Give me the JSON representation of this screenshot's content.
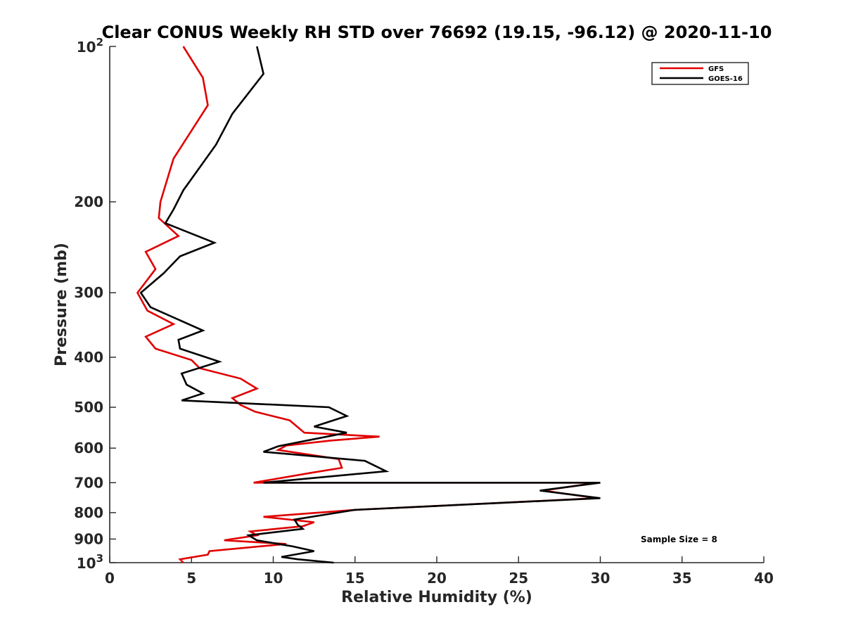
{
  "chart_data": {
    "type": "line",
    "title": "Clear CONUS Weekly RH STD over 76692 (19.15, -96.12) @ 2020-11-10",
    "xlabel": "Relative Humidity (%)",
    "ylabel": "Pressure (mb)",
    "xlim": [
      0,
      40
    ],
    "ylim": [
      100,
      1000
    ],
    "yscale": "log",
    "yreversed": true,
    "x_ticks": [
      0,
      5,
      10,
      15,
      20,
      25,
      30,
      35,
      40
    ],
    "x_tick_labels": [
      "0",
      "5",
      "10",
      "15",
      "20",
      "25",
      "30",
      "35",
      "40"
    ],
    "y_ticks": [
      200,
      300,
      400,
      500,
      600,
      700,
      800,
      900
    ],
    "y_tick_labels": [
      "200",
      "300",
      "400",
      "500",
      "600",
      "700",
      "800",
      "900"
    ],
    "y_power_ticks": [
      {
        "value": 100,
        "base": "10",
        "exp": "2"
      },
      {
        "value": 1000,
        "base": "10",
        "exp": "3"
      }
    ],
    "grid": false,
    "legend_position": "top-right",
    "annotation": "Sample Size = 8",
    "series": [
      {
        "name": "GFS",
        "color": "#e00000",
        "points": [
          [
            4.5,
            100
          ],
          [
            5.7,
            115
          ],
          [
            6.0,
            130
          ],
          [
            3.9,
            165
          ],
          [
            3.1,
            200
          ],
          [
            3.0,
            215
          ],
          [
            4.2,
            233
          ],
          [
            2.2,
            250
          ],
          [
            2.8,
            270
          ],
          [
            1.7,
            300
          ],
          [
            2.3,
            325
          ],
          [
            3.9,
            345
          ],
          [
            2.2,
            365
          ],
          [
            2.8,
            385
          ],
          [
            5.0,
            405
          ],
          [
            5.5,
            420
          ],
          [
            8.0,
            440
          ],
          [
            9.0,
            460
          ],
          [
            7.5,
            480
          ],
          [
            8.0,
            495
          ],
          [
            8.9,
            510
          ],
          [
            11.0,
            530
          ],
          [
            11.9,
            560
          ],
          [
            16.5,
            570
          ],
          [
            13.5,
            580
          ],
          [
            10.8,
            593
          ],
          [
            10.3,
            605
          ],
          [
            14.0,
            630
          ],
          [
            14.2,
            655
          ],
          [
            12.3,
            670
          ],
          [
            8.8,
            700
          ],
          [
            29.8,
            700
          ],
          [
            26.5,
            725
          ],
          [
            29.8,
            750
          ],
          [
            15.0,
            790
          ],
          [
            9.4,
            815
          ],
          [
            12.5,
            835
          ],
          [
            11.8,
            850
          ],
          [
            8.6,
            870
          ],
          [
            9.0,
            885
          ],
          [
            7.0,
            905
          ],
          [
            10.8,
            920
          ],
          [
            6.1,
            950
          ],
          [
            6.0,
            965
          ],
          [
            4.3,
            985
          ],
          [
            4.5,
            1000
          ]
        ]
      },
      {
        "name": "GOES-16",
        "color": "#000000",
        "points": [
          [
            9.0,
            100
          ],
          [
            9.4,
            113
          ],
          [
            7.5,
            135
          ],
          [
            6.5,
            155
          ],
          [
            4.5,
            190
          ],
          [
            3.9,
            207
          ],
          [
            3.4,
            220
          ],
          [
            6.4,
            240
          ],
          [
            4.3,
            255
          ],
          [
            3.3,
            275
          ],
          [
            1.9,
            300
          ],
          [
            2.5,
            320
          ],
          [
            5.7,
            355
          ],
          [
            4.2,
            370
          ],
          [
            4.3,
            385
          ],
          [
            6.7,
            408
          ],
          [
            4.4,
            430
          ],
          [
            4.7,
            452
          ],
          [
            5.7,
            470
          ],
          [
            4.4,
            485
          ],
          [
            13.4,
            500
          ],
          [
            14.5,
            520
          ],
          [
            12.5,
            545
          ],
          [
            14.5,
            560
          ],
          [
            10.3,
            595
          ],
          [
            9.4,
            610
          ],
          [
            15.6,
            635
          ],
          [
            16.9,
            665
          ],
          [
            9.4,
            700
          ],
          [
            30.0,
            700
          ],
          [
            26.3,
            725
          ],
          [
            30.0,
            750
          ],
          [
            15.0,
            790
          ],
          [
            11.3,
            825
          ],
          [
            11.5,
            845
          ],
          [
            11.8,
            860
          ],
          [
            8.5,
            885
          ],
          [
            9.0,
            905
          ],
          [
            11.2,
            930
          ],
          [
            12.5,
            950
          ],
          [
            10.5,
            975
          ],
          [
            11.5,
            985
          ],
          [
            13.7,
            1000
          ]
        ]
      }
    ]
  }
}
